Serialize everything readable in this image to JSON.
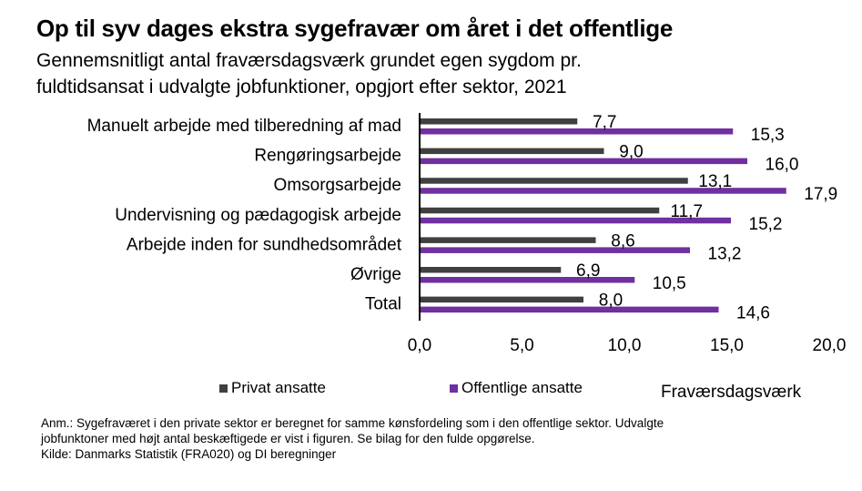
{
  "title": "Op til syv dages ekstra sygefravær om året i det offentlige",
  "subtitle_lines": [
    "Gennemsnitligt antal fraværsdagsværk grundet egen sygdom pr.",
    "fuldtidsansat i udvalgte jobfunktioner, opgjort efter sektor, 2021"
  ],
  "notes": [
    "Anm.: Sygefraværet i den private sektor er beregnet for samme kønsfordeling som i den offentlige sektor. Udvalgte",
    "jobfunktoner med højt antal beskæftigede er vist i figuren. Se bilag for den fulde opgørelse.",
    "Kilde: Danmarks Statistik (FRA020) og DI beregninger"
  ],
  "colors": {
    "privat": "#404040",
    "offentlig": "#7030a0"
  },
  "chart_data": {
    "type": "bar",
    "orientation": "horizontal",
    "title": "Op til syv dages ekstra sygefravær om året i det offentlige",
    "xlabel": "Fraværsdagsværk",
    "ylabel": "",
    "xlim": [
      0,
      20
    ],
    "xticks": [
      0,
      5,
      10,
      15,
      20
    ],
    "xtick_labels": [
      "0,0",
      "5,0",
      "10,0",
      "15,0",
      "20,0"
    ],
    "grid": false,
    "legend_position": "bottom",
    "categories": [
      "Manuelt arbejde med tilberedning af mad",
      "Rengøringsarbejde",
      "Omsorgsarbejde",
      "Undervisning og pædagogisk arbejde",
      "Arbejde inden for sundhedsområdet",
      "Øvrige",
      "Total"
    ],
    "series": [
      {
        "name": "Privat ansatte",
        "values": [
          7.7,
          9.0,
          13.1,
          11.7,
          8.6,
          6.9,
          8.0
        ],
        "labels": [
          "7,7",
          "9,0",
          "13,1",
          "11,7",
          "8,6",
          "6,9",
          "8,0"
        ]
      },
      {
        "name": "Offentlige ansatte",
        "values": [
          15.3,
          16.0,
          17.9,
          15.2,
          13.2,
          10.5,
          14.6
        ],
        "labels": [
          "15,3",
          "16,0",
          "17,9",
          "15,2",
          "13,2",
          "10,5",
          "14,6"
        ]
      }
    ]
  }
}
